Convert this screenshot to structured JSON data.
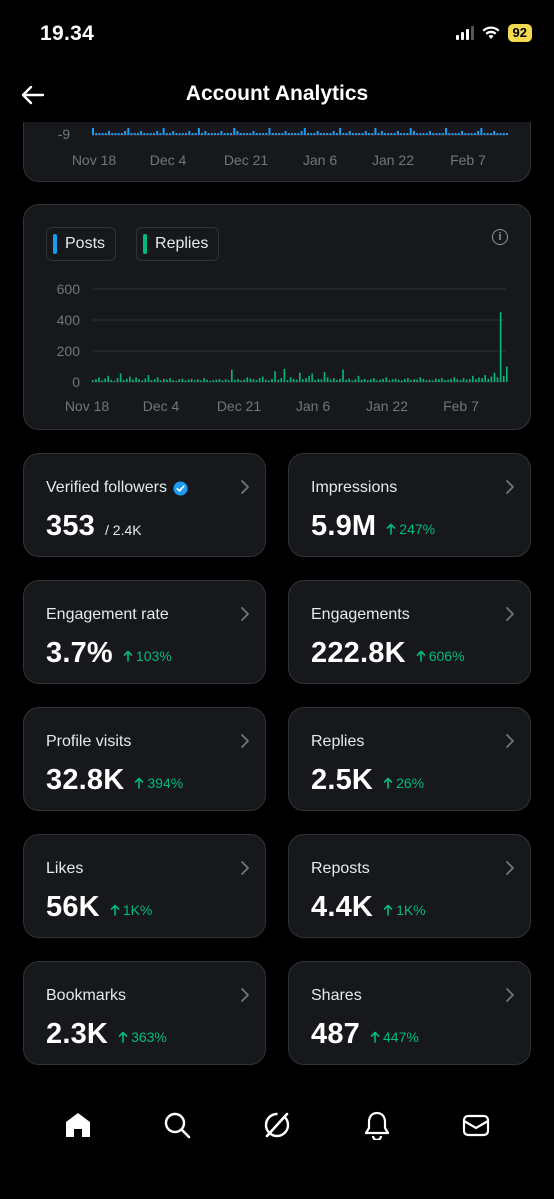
{
  "status": {
    "time": "19.34",
    "battery": "92"
  },
  "header": {
    "title": "Account Analytics"
  },
  "top_chart": {
    "y_tick": "-9",
    "x_ticks": [
      "Nov 18",
      "Dec 4",
      "Dec 21",
      "Jan 6",
      "Jan 22",
      "Feb 7"
    ]
  },
  "chart_data": {
    "type": "bar",
    "legend": [
      {
        "label": "Posts",
        "color": "#1d9bf0"
      },
      {
        "label": "Replies",
        "color": "#00ba7c"
      }
    ],
    "x_ticks": [
      "Nov 18",
      "Dec 4",
      "Dec 21",
      "Jan 6",
      "Jan 22",
      "Feb 7"
    ],
    "y_ticks": [
      "600",
      "400",
      "200",
      "0"
    ],
    "ylim": [
      0,
      600
    ],
    "series": [
      {
        "name": "Replies",
        "values": [
          12,
          18,
          30,
          10,
          22,
          40,
          14,
          8,
          25,
          55,
          12,
          20,
          35,
          15,
          30,
          18,
          10,
          22,
          45,
          12,
          18,
          30,
          10,
          20,
          15,
          25,
          12,
          8,
          18,
          22,
          10,
          15,
          20,
          12,
          18,
          10,
          25,
          14,
          8,
          12,
          15,
          20,
          10,
          18,
          12,
          80,
          14,
          20,
          10,
          15,
          30,
          22,
          18,
          12,
          25,
          35,
          15,
          10,
          20,
          70,
          15,
          25,
          85,
          12,
          30,
          20,
          15,
          60,
          18,
          25,
          40,
          55,
          12,
          20,
          18,
          65,
          30,
          15,
          25,
          12,
          20,
          80,
          15,
          22,
          10,
          18,
          40,
          15,
          20,
          12,
          18,
          25,
          10,
          15,
          20,
          30,
          12,
          18,
          22,
          15,
          10,
          20,
          25,
          12,
          18,
          15,
          30,
          20,
          12,
          15,
          10,
          22,
          18,
          25,
          12,
          15,
          20,
          30,
          18,
          12,
          25,
          15,
          20,
          40,
          18,
          30,
          25,
          45,
          20,
          35,
          60,
          30,
          450,
          40,
          100
        ]
      }
    ]
  },
  "tiles": [
    {
      "label": "Verified followers",
      "value": "353",
      "sub": "/ 2.4K",
      "verified": true
    },
    {
      "label": "Impressions",
      "value": "5.9M",
      "change": "247%"
    },
    {
      "label": "Engagement rate",
      "value": "3.7%",
      "change": "103%"
    },
    {
      "label": "Engagements",
      "value": "222.8K",
      "change": "606%"
    },
    {
      "label": "Profile visits",
      "value": "32.8K",
      "change": "394%"
    },
    {
      "label": "Replies",
      "value": "2.5K",
      "change": "26%"
    },
    {
      "label": "Likes",
      "value": "56K",
      "change": "1K%"
    },
    {
      "label": "Reposts",
      "value": "4.4K",
      "change": "1K%"
    },
    {
      "label": "Bookmarks",
      "value": "2.3K",
      "change": "363%"
    },
    {
      "label": "Shares",
      "value": "487",
      "change": "447%"
    }
  ],
  "nav": [
    "home-icon",
    "search-icon",
    "grok-icon",
    "notifications-icon",
    "messages-icon"
  ]
}
